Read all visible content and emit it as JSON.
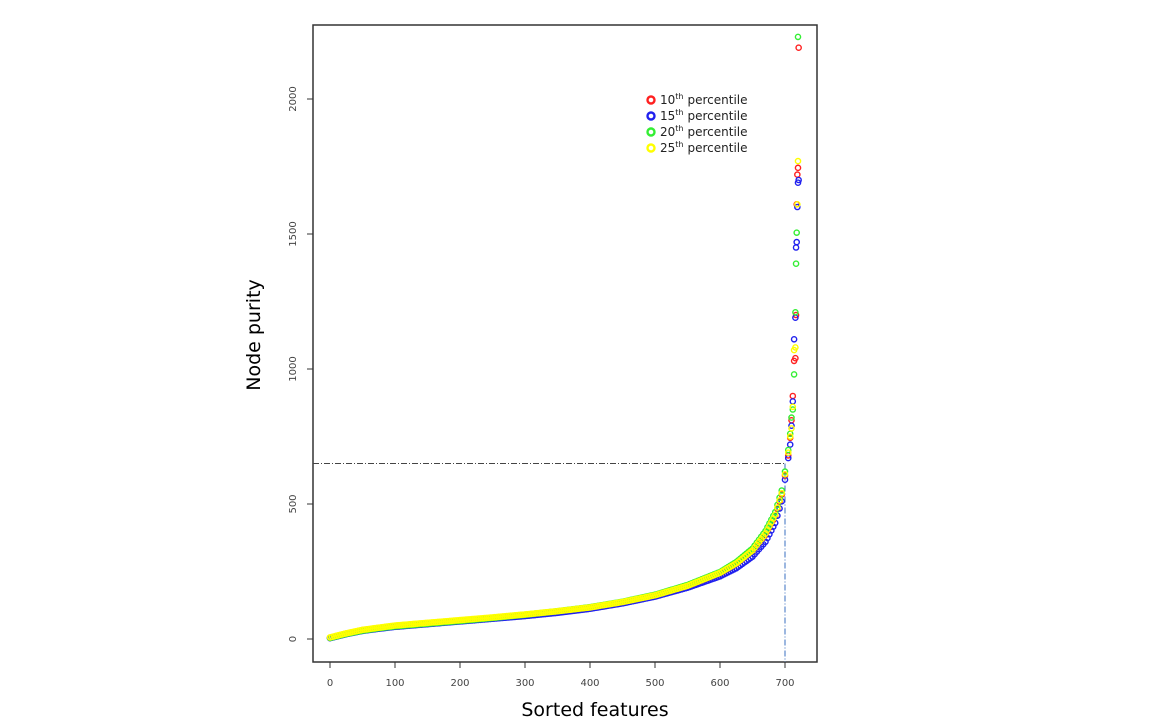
{
  "chart_data": {
    "type": "scatter",
    "title": "",
    "xlabel": "Sorted features",
    "ylabel": "Node purity",
    "xlim": [
      -25,
      745
    ],
    "ylim": [
      -80,
      2280
    ],
    "xticks": [
      0,
      100,
      200,
      300,
      400,
      500,
      600,
      700
    ],
    "yticks": [
      0,
      500,
      1000,
      1500,
      2000
    ],
    "grid": false,
    "legend_position": "top-right",
    "reference_lines": {
      "horizontal_y": 650,
      "vertical_x": 700
    },
    "series": [
      {
        "name": "10th percentile",
        "num": "10",
        "sup": "th",
        "label": "percentile",
        "color": "#ff2020",
        "x": [
          0,
          25,
          50,
          75,
          100,
          150,
          200,
          250,
          300,
          350,
          400,
          450,
          500,
          550,
          600,
          625,
          650,
          670,
          685,
          695,
          700,
          705,
          708,
          710,
          712,
          714,
          716,
          717,
          718,
          719,
          720,
          721
        ],
        "y": [
          5,
          20,
          33,
          41,
          48,
          58,
          68,
          78,
          88,
          100,
          115,
          135,
          160,
          195,
          242,
          278,
          325,
          385,
          455,
          535,
          605,
          680,
          745,
          810,
          900,
          1030,
          1040,
          1200,
          1610,
          1720,
          1745,
          2190
        ]
      },
      {
        "name": "15th percentile",
        "num": "15",
        "sup": "th",
        "label": "percentile",
        "color": "#2020ee",
        "x": [
          0,
          25,
          50,
          75,
          100,
          150,
          200,
          250,
          300,
          350,
          400,
          450,
          500,
          550,
          600,
          625,
          650,
          670,
          685,
          695,
          700,
          705,
          708,
          710,
          712,
          714,
          716,
          717,
          718,
          719,
          720,
          721
        ],
        "y": [
          3,
          18,
          30,
          38,
          45,
          55,
          65,
          75,
          85,
          97,
          112,
          132,
          157,
          190,
          232,
          262,
          305,
          360,
          430,
          510,
          590,
          670,
          720,
          790,
          880,
          1110,
          1190,
          1450,
          1470,
          1600,
          1690,
          1700
        ]
      },
      {
        "name": "20th percentile",
        "num": "20",
        "sup": "th",
        "label": "percentile",
        "color": "#33ee33",
        "x": [
          0,
          25,
          50,
          75,
          100,
          150,
          200,
          250,
          300,
          350,
          400,
          450,
          500,
          550,
          600,
          625,
          650,
          670,
          685,
          695,
          700,
          705,
          708,
          710,
          712,
          714,
          716,
          717,
          718,
          720
        ],
        "y": [
          4,
          19,
          31,
          40,
          47,
          57,
          67,
          78,
          90,
          103,
          118,
          138,
          164,
          200,
          248,
          285,
          335,
          400,
          470,
          550,
          620,
          700,
          760,
          820,
          850,
          980,
          1210,
          1390,
          1505,
          2230
        ]
      },
      {
        "name": "25th percentile",
        "num": "25",
        "sup": "th",
        "label": "percentile",
        "color": "#ffff00",
        "x": [
          0,
          25,
          50,
          75,
          100,
          150,
          200,
          250,
          300,
          350,
          400,
          450,
          500,
          550,
          600,
          625,
          650,
          670,
          685,
          695,
          700,
          705,
          708,
          710,
          712,
          714,
          716,
          719,
          720
        ],
        "y": [
          6,
          21,
          34,
          42,
          50,
          60,
          70,
          80,
          91,
          103,
          117,
          137,
          162,
          197,
          245,
          280,
          328,
          390,
          460,
          540,
          610,
          690,
          750,
          780,
          860,
          1070,
          1080,
          1610,
          1770
        ]
      }
    ]
  }
}
